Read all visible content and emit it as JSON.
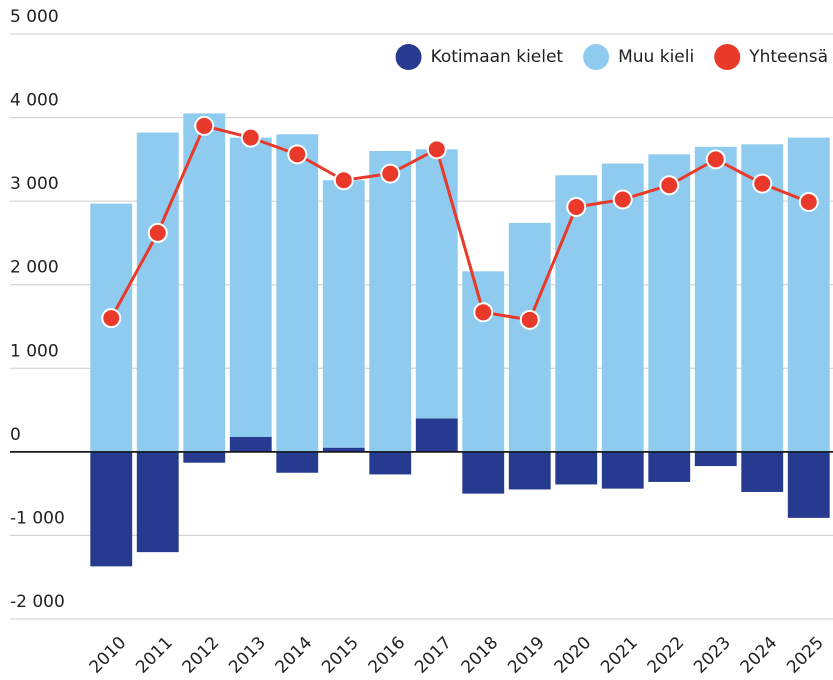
{
  "chart_data": {
    "type": "bar-line",
    "categories": [
      "2010",
      "2011",
      "2012",
      "2013",
      "2014",
      "2015",
      "2016",
      "2017",
      "2018",
      "2019",
      "2020",
      "2021",
      "2022",
      "2023",
      "2024",
      "2025"
    ],
    "series": [
      {
        "name": "Kotimaan kielet",
        "color": "#263a8f",
        "kind": "bar",
        "values": [
          -1370,
          -1200,
          -130,
          180,
          -250,
          50,
          -270,
          400,
          -500,
          -450,
          -390,
          -440,
          -360,
          -170,
          -480,
          -790
        ]
      },
      {
        "name": "Muu kieli",
        "color": "#8ecbef",
        "kind": "bar",
        "values": [
          2970,
          3820,
          4050,
          3580,
          3800,
          3200,
          3600,
          3220,
          2160,
          2740,
          3310,
          3450,
          3560,
          3650,
          3680,
          3760
        ]
      },
      {
        "name": "Yhteensä",
        "color": "#e8392a",
        "kind": "line",
        "values": [
          1600,
          2620,
          3900,
          3760,
          3560,
          3250,
          3330,
          3620,
          1670,
          1580,
          2930,
          3020,
          3190,
          3500,
          3210,
          2990
        ]
      }
    ],
    "ylim": [
      -2000,
      5000
    ],
    "yticks": [
      {
        "value": -2000,
        "label": "-2 000"
      },
      {
        "value": -1000,
        "label": "-1 000"
      },
      0,
      {
        "value": 1000,
        "label": "1 000"
      },
      {
        "value": 2000,
        "label": "2 000"
      },
      {
        "value": 3000,
        "label": "3 000"
      },
      {
        "value": 4000,
        "label": "4 000"
      },
      {
        "value": 5000,
        "label": "5 000"
      }
    ],
    "grid": true,
    "stacked": true,
    "legend": "top-right"
  }
}
